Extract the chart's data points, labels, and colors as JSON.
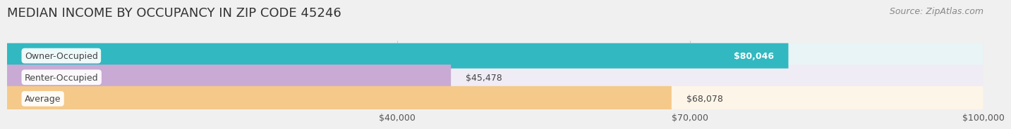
{
  "title": "MEDIAN INCOME BY OCCUPANCY IN ZIP CODE 45246",
  "source": "Source: ZipAtlas.com",
  "categories": [
    "Owner-Occupied",
    "Renter-Occupied",
    "Average"
  ],
  "values": [
    80046,
    45478,
    68078
  ],
  "labels": [
    "$80,046",
    "$45,478",
    "$68,078"
  ],
  "bar_colors": [
    "#32b8c0",
    "#c9aad4",
    "#f5c98a"
  ],
  "bar_bg_colors": [
    "#e8f4f5",
    "#f0ecf5",
    "#fdf5e8"
  ],
  "label_text_colors": [
    "white",
    "black",
    "black"
  ],
  "xlim_max": 100000,
  "xticks": [
    40000,
    70000,
    100000
  ],
  "xticklabels": [
    "$40,000",
    "$70,000",
    "$100,000"
  ],
  "title_fontsize": 13,
  "source_fontsize": 9,
  "tick_fontsize": 9,
  "category_fontsize": 9,
  "value_fontsize": 9,
  "background_color": "#f0f0f0",
  "bar_row_bg": "#e8e8e8"
}
